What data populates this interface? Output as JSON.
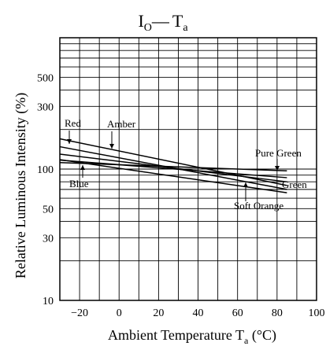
{
  "chart_data": {
    "type": "line",
    "title": {
      "main": "I",
      "main_sub": "O",
      "dash": "—",
      "var": "T",
      "var_sub": "a"
    },
    "ylabel": "Relative Luminous Intensity  (%)",
    "xlabel": {
      "text": "Ambient Temperature  T",
      "sub": "a",
      "unit": "  (°C)"
    },
    "x_scale": "linear",
    "y_scale": "log",
    "xlim": [
      -30,
      100
    ],
    "ylim": [
      10,
      1000
    ],
    "x_ticks": [
      -20,
      0,
      20,
      40,
      60,
      80,
      100
    ],
    "y_tick_labels": [
      10,
      30,
      50,
      100,
      300,
      500
    ],
    "grid": true,
    "series": [
      {
        "name": "Red",
        "x": [
          -30,
          85
        ],
        "y": [
          170,
          75
        ]
      },
      {
        "name": "Amber",
        "x": [
          -30,
          85
        ],
        "y": [
          148,
          70
        ]
      },
      {
        "name": "Blue",
        "x": [
          -30,
          85
        ],
        "y": [
          130,
          80
        ]
      },
      {
        "name": "Pure Green",
        "x": [
          -30,
          85
        ],
        "y": [
          112,
          97
        ]
      },
      {
        "name": "Green",
        "x": [
          -30,
          85
        ],
        "y": [
          117,
          86
        ]
      },
      {
        "name": "Soft Orange",
        "x": [
          -30,
          85
        ],
        "y": [
          118,
          66
        ]
      }
    ],
    "annotations": [
      "Red",
      "Amber",
      "Blue",
      "Pure Green",
      "Green",
      "Soft Orange"
    ]
  }
}
